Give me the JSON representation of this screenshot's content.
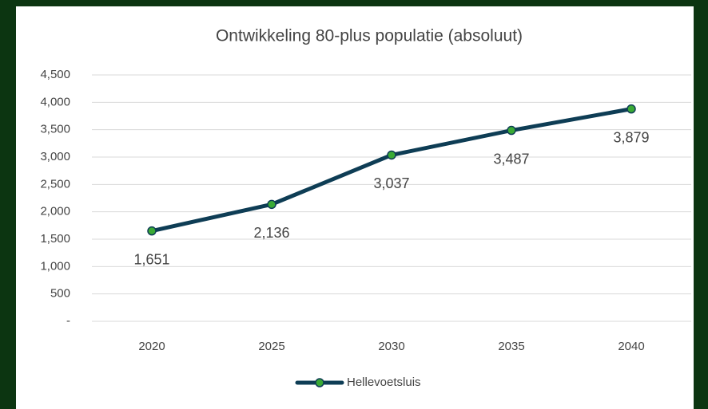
{
  "chart_data": {
    "type": "line",
    "title": "Ontwikkeling 80-plus populatie (absoluut)",
    "categories": [
      "2020",
      "2025",
      "2030",
      "2035",
      "2040"
    ],
    "series": [
      {
        "name": "Hellevoetsluis",
        "color": "#0e3d55",
        "marker_color": "#3aaa35",
        "values": [
          1651,
          2136,
          3037,
          3487,
          3879
        ],
        "value_labels": [
          "1,651",
          "2,136",
          "3,037",
          "3,487",
          "3,879"
        ]
      }
    ],
    "ylim": [
      0,
      4500
    ],
    "yticks": [
      {
        "value": 0,
        "label": "-"
      },
      500,
      {
        "value": 1000,
        "label": "1,000"
      },
      {
        "value": 1500,
        "label": "1,500"
      },
      {
        "value": 2000,
        "label": "2,000"
      },
      {
        "value": 2500,
        "label": "2,500"
      },
      {
        "value": 3000,
        "label": "3,000"
      },
      {
        "value": 3500,
        "label": "3,500"
      },
      {
        "value": 4000,
        "label": "4,000"
      },
      {
        "value": 4500,
        "label": "4,500"
      }
    ],
    "grid": true,
    "legend": "bottom"
  }
}
